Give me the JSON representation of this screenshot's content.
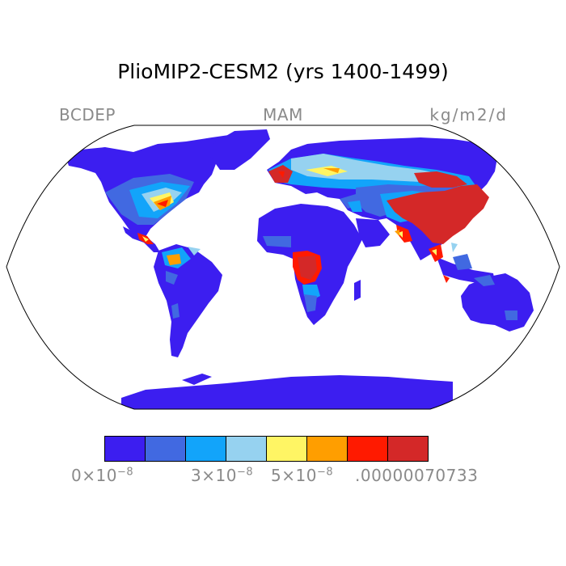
{
  "title": "PlioMIP2-CESM2 (yrs 1400-1499)",
  "header": {
    "left": "BCDEP",
    "center": "MAM",
    "right": "kg/m2/d"
  },
  "colorbar": {
    "colors": [
      "#3c1ef0",
      "#4169e1",
      "#12a4fa",
      "#96d2f0",
      "#fff564",
      "#ff9e00",
      "#ff1a00",
      "#d42828"
    ],
    "labels": [
      {
        "text": "0×10",
        "exp": "−8"
      },
      {
        "text": "3×10",
        "exp": "−8"
      },
      {
        "text": "5×10",
        "exp": "−8"
      },
      {
        "text": ".00000070733",
        "exp": ""
      }
    ]
  },
  "map": {
    "projection": "Robinson",
    "land_base_color": "#3c1ef0",
    "ocean_color": "#ffffff",
    "outline_color": "#000000"
  }
}
